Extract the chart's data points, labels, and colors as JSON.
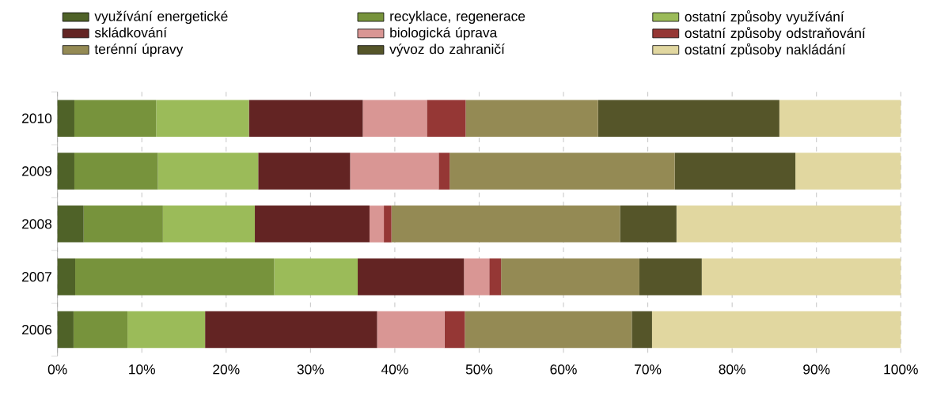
{
  "chart_data": {
    "type": "bar",
    "orientation": "horizontal",
    "stacked": true,
    "categories": [
      "2010",
      "2009",
      "2008",
      "2007",
      "2006"
    ],
    "series": [
      {
        "name": "využívání energetické",
        "color": "#4f6228",
        "values": [
          2.0,
          2.0,
          3.1,
          2.1,
          1.9
        ]
      },
      {
        "name": "recyklace, regenerace",
        "color": "#77933c",
        "values": [
          9.7,
          9.9,
          9.4,
          23.6,
          6.4
        ]
      },
      {
        "name": "ostatní způsoby využívání",
        "color": "#9bbb59",
        "values": [
          11.0,
          11.9,
          10.9,
          9.9,
          9.2
        ]
      },
      {
        "name": "skládkování",
        "color": "#632423",
        "values": [
          13.5,
          10.9,
          13.6,
          12.6,
          20.4
        ]
      },
      {
        "name": "biologická úprava",
        "color": "#d99694",
        "values": [
          7.6,
          10.5,
          1.7,
          3.0,
          8.0
        ]
      },
      {
        "name": "ostatní způsoby odstraňování",
        "color": "#953735",
        "values": [
          4.6,
          1.3,
          0.9,
          1.4,
          2.4
        ]
      },
      {
        "name": "terénní úpravy",
        "color": "#948a54",
        "values": [
          15.7,
          26.7,
          27.1,
          16.4,
          19.8
        ]
      },
      {
        "name": "vývoz do zahraničí",
        "color": "#555529",
        "values": [
          21.5,
          14.3,
          6.7,
          7.4,
          2.4
        ]
      },
      {
        "name": "ostatní způsoby nakládání",
        "color": "#e1d7a0",
        "values": [
          14.4,
          12.5,
          26.6,
          23.6,
          29.5
        ]
      }
    ],
    "xlim": [
      0,
      100
    ],
    "xticks": [
      {
        "value": 0,
        "label": "0%"
      },
      {
        "value": 10,
        "label": "10%"
      },
      {
        "value": 20,
        "label": "20%"
      },
      {
        "value": 30,
        "label": "30%"
      },
      {
        "value": 40,
        "label": "40%"
      },
      {
        "value": 50,
        "label": "50%"
      },
      {
        "value": 60,
        "label": "60%"
      },
      {
        "value": 70,
        "label": "70%"
      },
      {
        "value": 80,
        "label": "80%"
      },
      {
        "value": 90,
        "label": "90%"
      },
      {
        "value": 100,
        "label": "100%"
      }
    ],
    "grid": "x",
    "legend": "top"
  }
}
